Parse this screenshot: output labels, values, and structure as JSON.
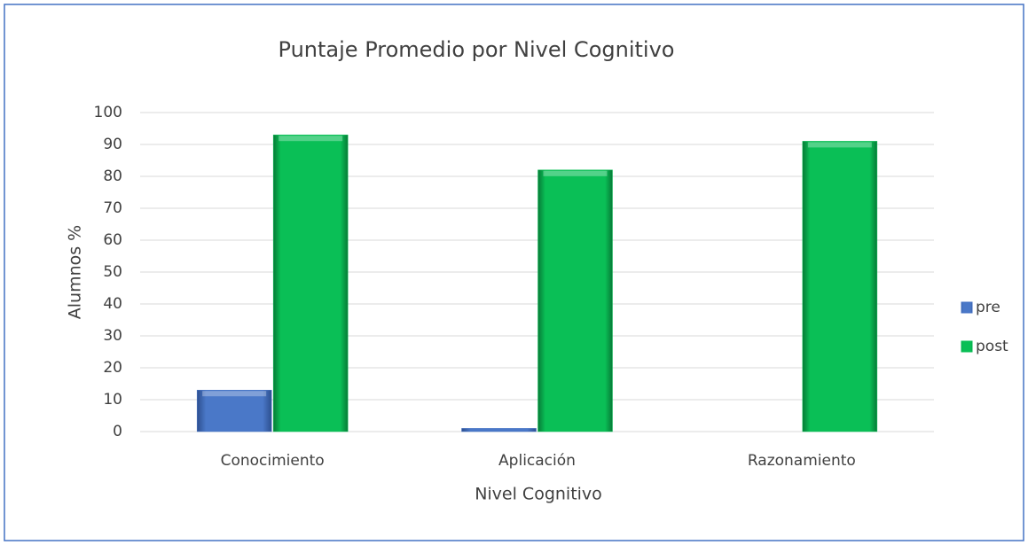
{
  "chart_data": {
    "type": "bar",
    "title": "Puntaje Promedio por Nivel Cognitivo",
    "x_label": "Nivel Cognitivo",
    "y_label": "Alumnos %",
    "categories": [
      "Conocimiento",
      "Aplicación",
      "Razonamiento"
    ],
    "series": [
      {
        "name": "pre",
        "color": "#4472c4",
        "values": [
          13,
          1,
          0
        ]
      },
      {
        "name": "post",
        "color": "#0abf56",
        "values": [
          93,
          82,
          91
        ]
      }
    ],
    "ylim": [
      0,
      100
    ],
    "yticks": [
      0,
      10,
      20,
      30,
      40,
      50,
      60,
      70,
      80,
      90,
      100
    ],
    "grid": true,
    "legend": "right"
  }
}
